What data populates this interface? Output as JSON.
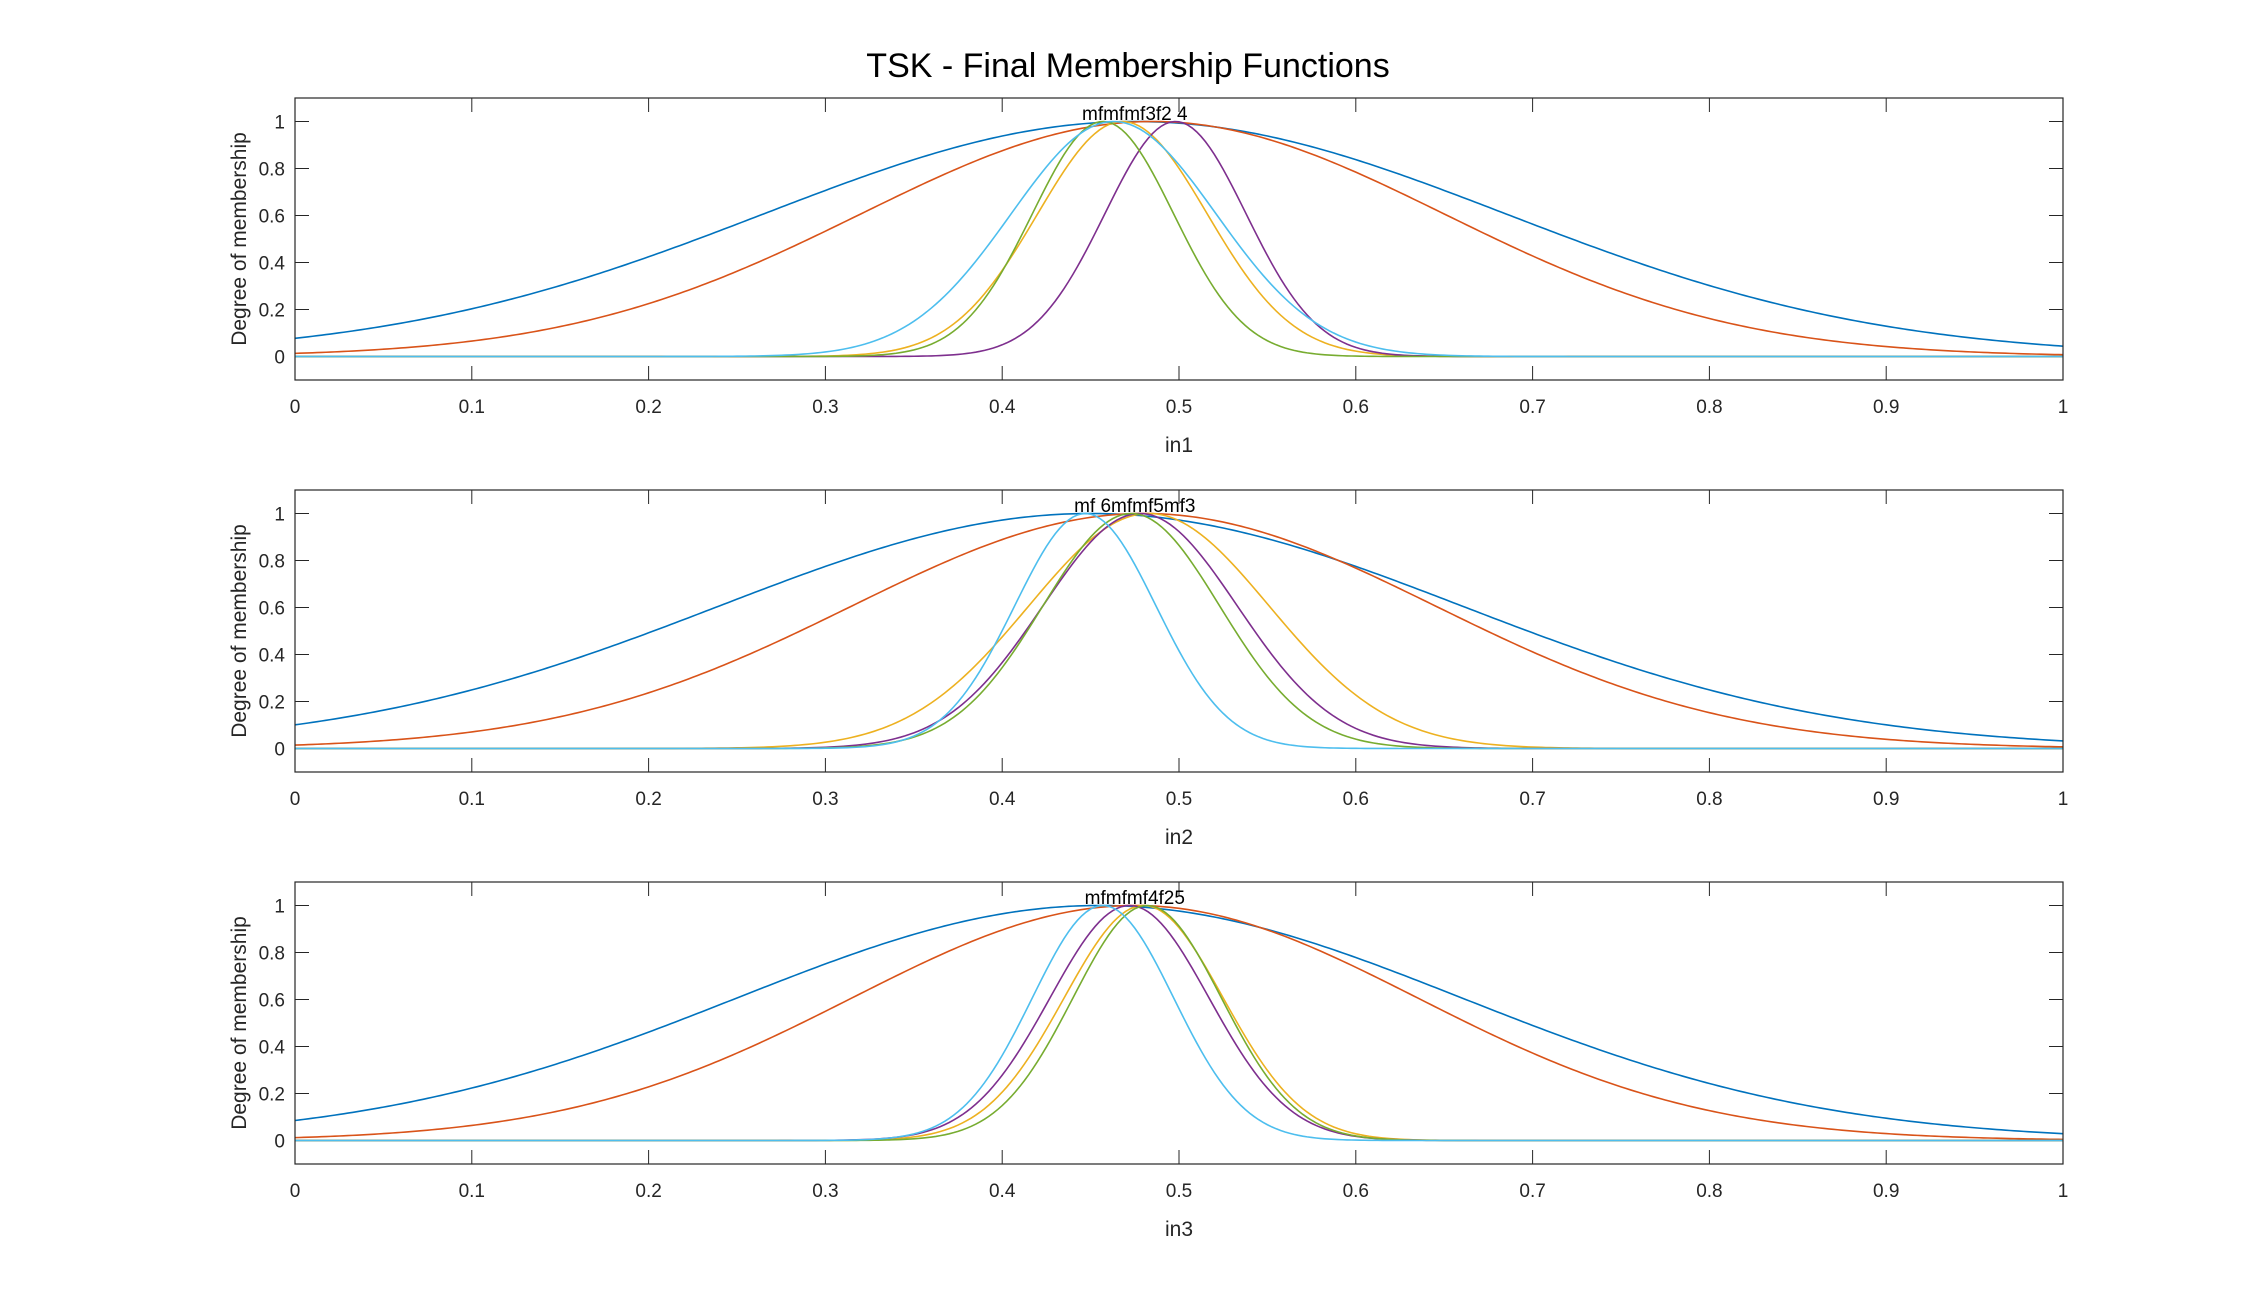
{
  "figure_title": "TSK - Final Membership Functions",
  "colors": [
    "#0072BD",
    "#D95319",
    "#EDB120",
    "#7E2F8E",
    "#77AC30",
    "#4DBEEE"
  ],
  "chart_data": [
    {
      "type": "line",
      "xlabel": "in1",
      "ylabel": "Degree of membership",
      "xlim": [
        0,
        1
      ],
      "ylim": [
        -0.1,
        1.1
      ],
      "xticks": [
        "0",
        "0.1",
        "0.2",
        "0.3",
        "0.4",
        "0.5",
        "0.6",
        "0.7",
        "0.8",
        "0.9",
        "1"
      ],
      "yticks": [
        "0",
        "0.2",
        "0.4",
        "0.6",
        "0.8",
        "1"
      ],
      "mf_labels": "mfmfmf3f2 4",
      "series": [
        {
          "mu": 0.475,
          "sigma": 0.21
        },
        {
          "mu": 0.485,
          "sigma": 0.165
        },
        {
          "mu": 0.468,
          "sigma": 0.048
        },
        {
          "mu": 0.498,
          "sigma": 0.04
        },
        {
          "mu": 0.457,
          "sigma": 0.04
        },
        {
          "mu": 0.463,
          "sigma": 0.058
        }
      ]
    },
    {
      "type": "line",
      "xlabel": "in2",
      "ylabel": "Degree of membership",
      "xlim": [
        0,
        1
      ],
      "ylim": [
        -0.1,
        1.1
      ],
      "xticks": [
        "0",
        "0.1",
        "0.2",
        "0.3",
        "0.4",
        "0.5",
        "0.6",
        "0.7",
        "0.8",
        "0.9",
        "1"
      ],
      "yticks": [
        "0",
        "0.2",
        "0.4",
        "0.6",
        "0.8",
        "1"
      ],
      "mf_labels": "mf 6mfmf5mf3",
      "series": [
        {
          "mu": 0.45,
          "sigma": 0.21
        },
        {
          "mu": 0.48,
          "sigma": 0.165
        },
        {
          "mu": 0.483,
          "sigma": 0.068
        },
        {
          "mu": 0.478,
          "sigma": 0.055
        },
        {
          "mu": 0.473,
          "sigma": 0.05
        },
        {
          "mu": 0.447,
          "sigma": 0.04
        }
      ]
    },
    {
      "type": "line",
      "xlabel": "in3",
      "ylabel": "Degree of membership",
      "xlim": [
        0,
        1
      ],
      "ylim": [
        -0.1,
        1.1
      ],
      "xticks": [
        "0",
        "0.1",
        "0.2",
        "0.3",
        "0.4",
        "0.5",
        "0.6",
        "0.7",
        "0.8",
        "0.9",
        "1"
      ],
      "yticks": [
        "0",
        "0.2",
        "0.4",
        "0.6",
        "0.8",
        "1"
      ],
      "mf_labels": "mfmfmf4f25",
      "series": [
        {
          "mu": 0.455,
          "sigma": 0.205
        },
        {
          "mu": 0.475,
          "sigma": 0.16
        },
        {
          "mu": 0.48,
          "sigma": 0.045
        },
        {
          "mu": 0.472,
          "sigma": 0.045
        },
        {
          "mu": 0.482,
          "sigma": 0.042
        },
        {
          "mu": 0.457,
          "sigma": 0.04
        }
      ]
    }
  ]
}
